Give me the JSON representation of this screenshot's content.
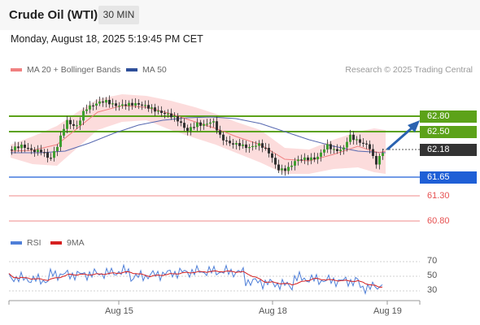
{
  "header": {
    "title": "Crude Oil (WTI)",
    "timeframe": "30 MIN"
  },
  "datetime": "Monday, August 18, 2025 5:19:45 PM CET",
  "legend": [
    {
      "label": "MA 20 + Bollinger Bands",
      "color": "#f08080"
    },
    {
      "label": "MA 50",
      "color": "#2e4f9a"
    }
  ],
  "copyright": "Research © 2025 Trading Central",
  "levels": {
    "resistance_2": {
      "label": "62.80",
      "color": "#5ca219"
    },
    "resistance_1": {
      "label": "62.50",
      "color": "#5ca219"
    },
    "current": {
      "label": "62.18",
      "color": "#333333"
    },
    "pivot": {
      "label": "61.65",
      "color": "#1f5fd6"
    },
    "support_1": {
      "label": "61.30",
      "color": "#e65050"
    },
    "support_2": {
      "label": "60.80",
      "color": "#e65050"
    }
  },
  "rsi": {
    "legend": [
      {
        "label": "RSI",
        "color": "#4f7fd8"
      },
      {
        "label": "9MA",
        "color": "#d62020"
      }
    ],
    "ticks": [
      "70",
      "50",
      "30"
    ]
  },
  "dates": [
    "Aug 15",
    "Aug 18",
    "Aug 19"
  ]
}
